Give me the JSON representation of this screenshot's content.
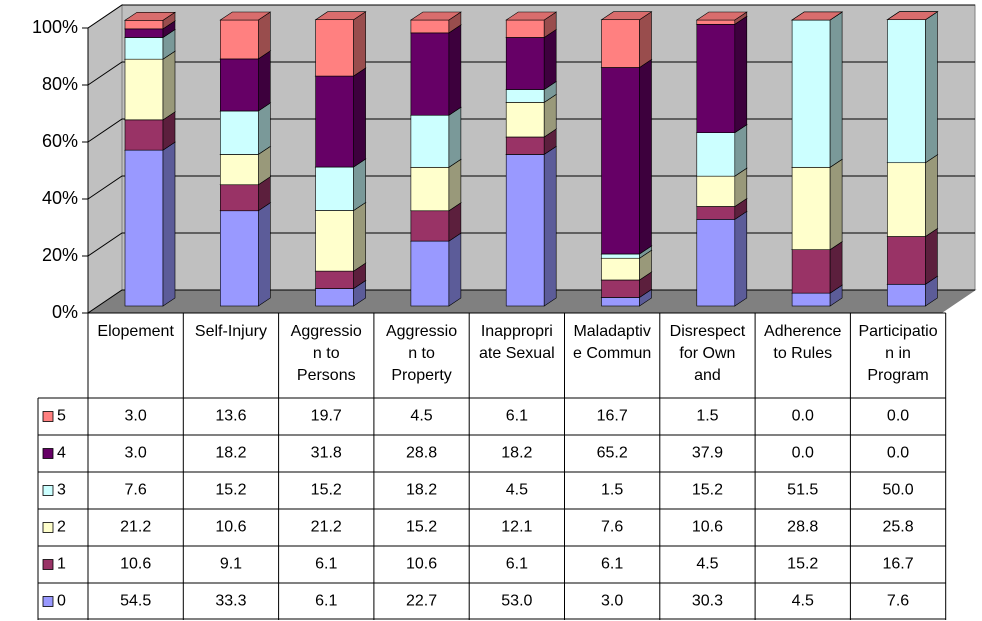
{
  "chart_data": {
    "type": "bar3d-stacked-table",
    "categories": [
      "Elopement",
      "Self-Injury",
      "Aggression to Persons",
      "Aggression to Property",
      "Inappropriate Sexual",
      "Maladaptive Commun",
      "Disrespect for Own and",
      "Adherence to Rules",
      "Participation in Program"
    ],
    "series": [
      {
        "name": "0",
        "color": "#9999ff",
        "values": [
          54.5,
          33.3,
          6.1,
          22.7,
          53.0,
          3.0,
          30.3,
          4.5,
          7.6
        ],
        "value_labels": [
          "54.5",
          "33.3",
          "6.1",
          "22.7",
          "53.0",
          "3.0",
          "30.3",
          "4.5",
          "7.6"
        ]
      },
      {
        "name": "1",
        "color": "#993366",
        "values": [
          10.6,
          9.1,
          6.1,
          10.6,
          6.1,
          6.1,
          4.5,
          15.2,
          16.7
        ],
        "value_labels": [
          "10.6",
          "9.1",
          "6.1",
          "10.6",
          "6.1",
          "6.1",
          "4.5",
          "15.2",
          "16.7"
        ]
      },
      {
        "name": "2",
        "color": "#ffffcc",
        "values": [
          21.2,
          10.6,
          21.2,
          15.2,
          12.1,
          7.6,
          10.6,
          28.8,
          25.8
        ],
        "value_labels": [
          "21.2",
          "10.6",
          "21.2",
          "15.2",
          "12.1",
          "7.6",
          "10.6",
          "28.8",
          "25.8"
        ]
      },
      {
        "name": "3",
        "color": "#ccffff",
        "values": [
          7.6,
          15.2,
          15.2,
          18.2,
          4.5,
          1.5,
          15.2,
          51.5,
          50.0
        ],
        "value_labels": [
          "7.6",
          "15.2",
          "15.2",
          "18.2",
          "4.5",
          "1.5",
          "15.2",
          "51.5",
          "50.0"
        ]
      },
      {
        "name": "4",
        "color": "#660066",
        "values": [
          3.0,
          18.2,
          31.8,
          28.8,
          18.2,
          65.2,
          37.9,
          0.0,
          0.0
        ],
        "value_labels": [
          "3.0",
          "18.2",
          "31.8",
          "28.8",
          "18.2",
          "65.2",
          "37.9",
          "0.0",
          "0.0"
        ]
      },
      {
        "name": "5",
        "color": "#ff8080",
        "values": [
          3.0,
          13.6,
          19.7,
          4.5,
          6.1,
          16.7,
          1.5,
          0.0,
          0.0
        ],
        "value_labels": [
          "3.0",
          "13.6",
          "19.7",
          "4.5",
          "6.1",
          "16.7",
          "1.5",
          "0.0",
          "0.0"
        ]
      }
    ],
    "ylim": [
      0,
      100
    ],
    "yticks": [
      {
        "value": 0,
        "label": "0%"
      },
      {
        "value": 20,
        "label": "20%"
      },
      {
        "value": 40,
        "label": "40%"
      },
      {
        "value": 60,
        "label": "60%"
      },
      {
        "value": 80,
        "label": "80%"
      },
      {
        "value": 100,
        "label": "100%"
      }
    ],
    "grid": true
  }
}
